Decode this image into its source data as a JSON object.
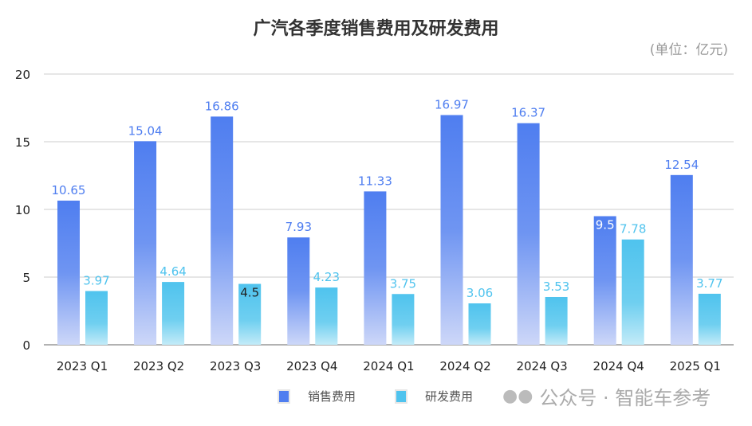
{
  "chart_data": {
    "type": "bar",
    "title": "广汽各季度销售费用及研发费用",
    "unit_note": "(单位：亿元)",
    "categories": [
      "2023 Q1",
      "2023 Q2",
      "2023 Q3",
      "2023 Q4",
      "2024 Q1",
      "2024 Q2",
      "2024 Q3",
      "2024 Q4",
      "2025 Q1"
    ],
    "series": [
      {
        "name": "销售费用",
        "values": [
          10.65,
          15.04,
          16.86,
          7.93,
          11.33,
          16.97,
          16.37,
          9.5,
          12.54
        ],
        "color": "#4f7ef0"
      },
      {
        "name": "研发费用",
        "values": [
          3.97,
          4.64,
          4.5,
          4.23,
          3.75,
          3.06,
          3.53,
          7.78,
          3.77
        ],
        "color": "#4fc3ee"
      }
    ],
    "ylim": [
      0,
      20
    ],
    "yticks": [
      0,
      5,
      10,
      15,
      20
    ],
    "grid": true,
    "legend": "bottom"
  },
  "watermark": "公众号 · 智能车参考"
}
